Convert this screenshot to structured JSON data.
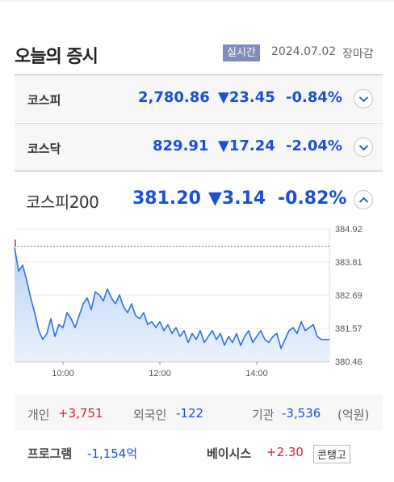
{
  "header": {
    "title": "오늘의 증시",
    "badge": "실시간",
    "date": "2024.07.02",
    "status": "장마감"
  },
  "indices": [
    {
      "name": "코스피",
      "value": "2,780.86",
      "change": "▼23.45",
      "percent": "-0.84%"
    },
    {
      "name": "코스닥",
      "value": "829.91",
      "change": "▼17.24",
      "percent": "-2.04%"
    }
  ],
  "kospi200": {
    "name": "코스피200",
    "value": "381.20",
    "change": "▼3.14",
    "percent": "-0.82%"
  },
  "colors": {
    "down": "#1a4fd6",
    "up": "#d8232a",
    "line": "#2f6fe3",
    "fill_top": "#b9d3f7",
    "fill_bottom": "#eaf2fd"
  },
  "chart_data": {
    "type": "area",
    "reference": 384.34,
    "ylim": [
      380.46,
      384.92
    ],
    "yticks": [
      "384.92",
      "383.81",
      "382.69",
      "381.57",
      "380.46"
    ],
    "xticks": [
      "10:00",
      "12:00",
      "14:00"
    ],
    "x_start": "09:00",
    "x_end": "15:30",
    "series": [
      {
        "x": [
          "09:00",
          "09:05",
          "09:10",
          "09:15",
          "09:20",
          "09:25",
          "09:30",
          "09:35",
          "09:40",
          "09:45",
          "09:50",
          "09:55",
          "10:00",
          "10:05",
          "10:10",
          "10:15",
          "10:20",
          "10:25",
          "10:30",
          "10:35",
          "10:40",
          "10:45",
          "10:50",
          "10:55",
          "11:00",
          "11:05",
          "11:10",
          "11:15",
          "11:20",
          "11:25",
          "11:30",
          "11:35",
          "11:40",
          "11:45",
          "11:50",
          "11:55",
          "12:00",
          "12:05",
          "12:10",
          "12:15",
          "12:20",
          "12:25",
          "12:30",
          "12:35",
          "12:40",
          "12:45",
          "12:50",
          "12:55",
          "13:00",
          "13:05",
          "13:10",
          "13:15",
          "13:20",
          "13:25",
          "13:30",
          "13:35",
          "13:40",
          "13:45",
          "13:50",
          "13:55",
          "14:00",
          "14:05",
          "14:10",
          "14:15",
          "14:20",
          "14:25",
          "14:30",
          "14:35",
          "14:40",
          "14:45",
          "14:50",
          "14:55",
          "15:00",
          "15:05",
          "15:10",
          "15:15",
          "15:20",
          "15:30"
        ],
        "values": [
          384.3,
          383.5,
          383.7,
          383.2,
          382.6,
          382.1,
          381.5,
          381.2,
          381.4,
          381.9,
          381.3,
          381.7,
          381.6,
          382.1,
          381.9,
          381.6,
          382.0,
          382.4,
          382.6,
          382.2,
          382.8,
          382.7,
          382.5,
          382.9,
          382.6,
          382.4,
          382.7,
          382.3,
          382.1,
          382.4,
          382.0,
          381.9,
          382.1,
          381.7,
          381.8,
          381.6,
          381.8,
          381.5,
          381.7,
          381.4,
          381.6,
          381.3,
          381.5,
          381.1,
          381.4,
          381.2,
          381.5,
          381.1,
          381.3,
          381.5,
          381.2,
          381.4,
          381.0,
          381.3,
          381.1,
          381.4,
          381.0,
          381.3,
          381.5,
          381.1,
          381.3,
          381.5,
          381.2,
          381.1,
          381.3,
          381.4,
          380.9,
          381.2,
          381.5,
          381.6,
          381.4,
          381.8,
          381.5,
          381.6,
          381.7,
          381.3,
          381.2,
          381.2
        ]
      }
    ]
  },
  "investors": {
    "individual_label": "개인",
    "individual": "+3,751",
    "foreign_label": "외국인",
    "foreign": "-122",
    "institution_label": "기관",
    "institution": "-3,536",
    "unit": "(억원)"
  },
  "program": {
    "label": "프로그램",
    "value": "-1,154억"
  },
  "basis": {
    "label": "베이시스",
    "value": "+2.30",
    "tag": "콘탱고"
  }
}
